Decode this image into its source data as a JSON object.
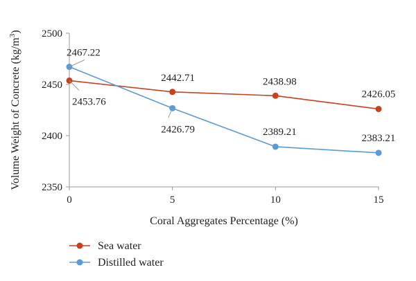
{
  "chart_data": {
    "type": "line",
    "title": "",
    "xlabel": "Coral Aggregates Percentage (%)",
    "ylabel": "Volume Weight of Concrete (kg/m",
    "ylabel_superscript": "3",
    "ylabel_suffix": ")",
    "x": [
      0,
      5,
      10,
      15
    ],
    "xlim": [
      0,
      15
    ],
    "ylim": [
      2350,
      2500
    ],
    "xticks": [
      "0",
      "5",
      "10",
      "15"
    ],
    "yticks": [
      "2350",
      "2400",
      "2450",
      "2500"
    ],
    "grid": false,
    "legend_position": "bottom-left",
    "series": [
      {
        "name": "Sea water",
        "color": "#c8401c",
        "values": [
          2453.76,
          2442.71,
          2438.98,
          2426.05
        ],
        "labels": [
          "2453.76",
          "2442.71",
          "2438.98",
          "2426.05"
        ]
      },
      {
        "name": "Distilled water",
        "color": "#5b9bd5",
        "values": [
          2467.22,
          2426.79,
          2389.21,
          2383.21
        ],
        "labels": [
          "2467.22",
          "2426.79",
          "2389.21",
          "2383.21"
        ]
      }
    ]
  }
}
